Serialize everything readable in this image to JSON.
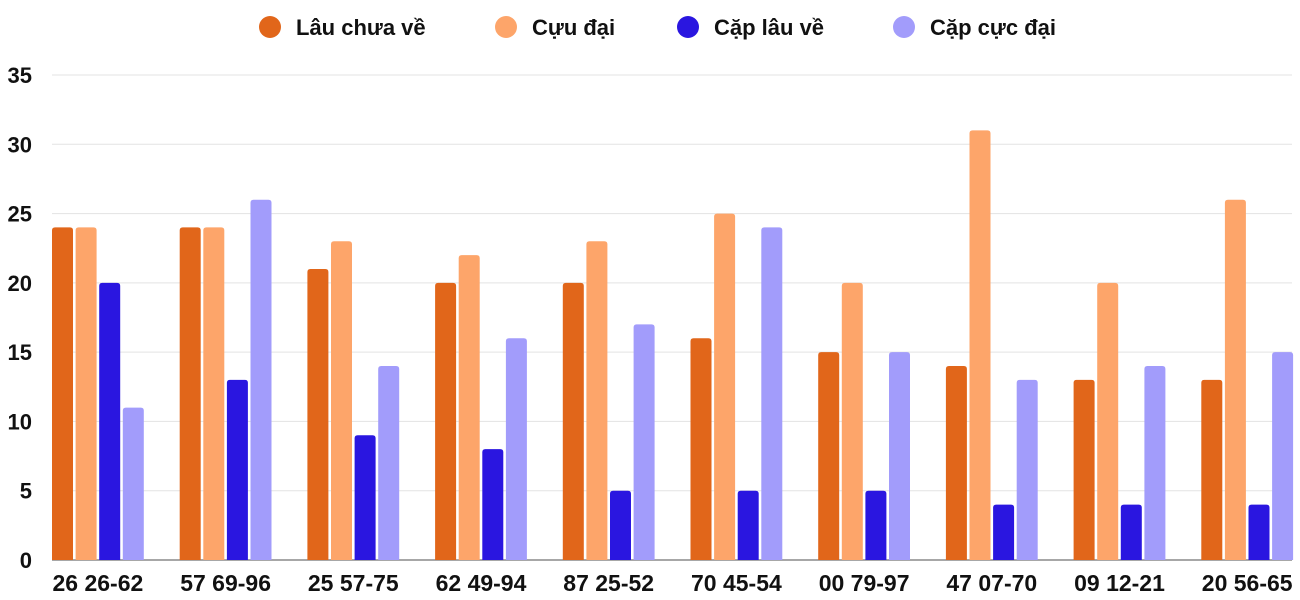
{
  "chart_data": {
    "type": "bar",
    "title": "",
    "xlabel": "",
    "ylabel": "",
    "ylim": [
      0,
      35
    ],
    "yticks": [
      0,
      5,
      10,
      15,
      20,
      25,
      30,
      35
    ],
    "grid": true,
    "legend_position": "top-center",
    "categories": [
      "26 26-62",
      "57 69-96",
      "25 57-75",
      "62 49-94",
      "87 25-52",
      "70 45-54",
      "00 79-97",
      "47 07-70",
      "09 12-21",
      "20 56-65"
    ],
    "series": [
      {
        "name": "Lâu chưa về",
        "color": "#e1661a",
        "values": [
          24,
          24,
          21,
          20,
          20,
          16,
          15,
          14,
          13,
          13
        ]
      },
      {
        "name": "Cựu đại",
        "color": "#fda56a",
        "values": [
          24,
          24,
          23,
          22,
          23,
          25,
          20,
          31,
          20,
          26
        ]
      },
      {
        "name": "Cặp lâu về",
        "color": "#2a16e0",
        "values": [
          20,
          13,
          9,
          8,
          5,
          5,
          5,
          4,
          4,
          4
        ]
      },
      {
        "name": "Cặp cực đại",
        "color": "#a29cfb",
        "values": [
          11,
          26,
          14,
          16,
          17,
          24,
          15,
          13,
          14,
          15
        ]
      }
    ]
  }
}
